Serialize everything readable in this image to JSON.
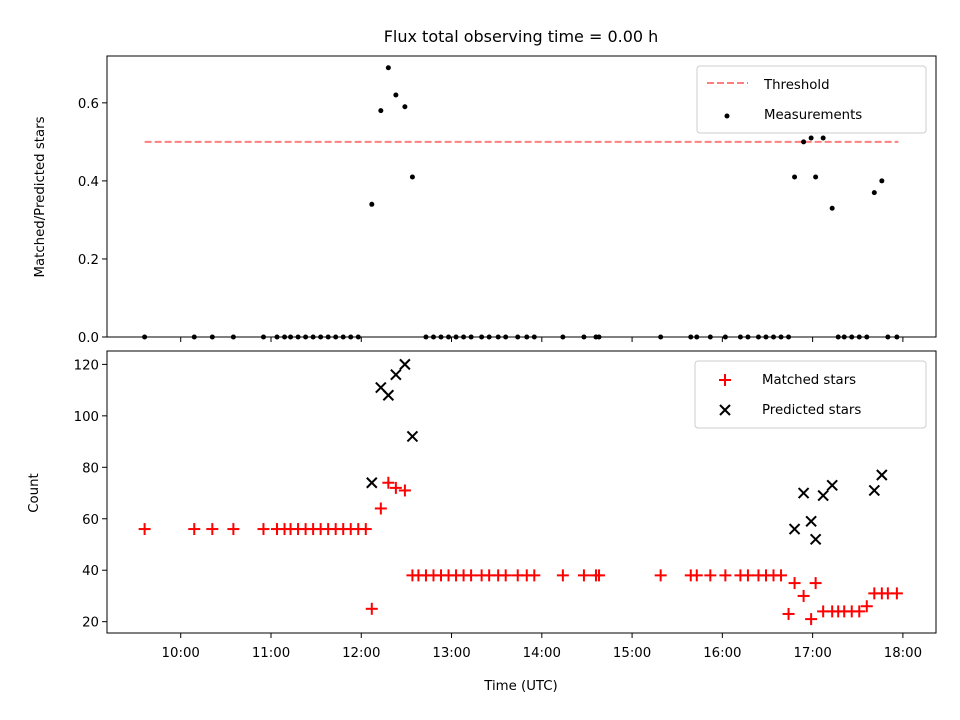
{
  "chart_data": [
    {
      "type": "scatter",
      "title": "Flux total observing time = 0.00 h",
      "xlabel": "",
      "ylabel": "Matched/Predicted stars",
      "ylim": [
        0,
        0.72
      ],
      "yticks": [
        0.0,
        0.2,
        0.4,
        0.6
      ],
      "ytick_labels": [
        "0.0",
        "0.2",
        "0.4",
        "0.6"
      ],
      "xlim": [
        "09:11",
        "18:22"
      ],
      "xticks": [
        "10:00",
        "11:00",
        "12:00",
        "13:00",
        "14:00",
        "15:00",
        "16:00",
        "17:00",
        "18:00"
      ],
      "legend": {
        "position": "top-right",
        "entries": [
          "Threshold",
          "Measurements"
        ]
      },
      "series": [
        {
          "name": "Threshold",
          "style": "dashed-line",
          "color": "#ff7f7f",
          "x": [
            "09:36",
            "17:57"
          ],
          "y": [
            0.5,
            0.5
          ]
        },
        {
          "name": "Measurements",
          "style": "dot",
          "color": "#000000",
          "x": [
            "09:36",
            "10:09",
            "10:21",
            "10:35",
            "10:55",
            "11:04",
            "11:09",
            "11:13",
            "11:18",
            "11:23",
            "11:28",
            "11:33",
            "11:38",
            "11:43",
            "11:48",
            "11:53",
            "11:58",
            "12:07",
            "12:13",
            "12:18",
            "12:23",
            "12:29",
            "12:34",
            "12:43",
            "12:48",
            "12:53",
            "12:58",
            "13:03",
            "13:08",
            "13:13",
            "13:20",
            "13:25",
            "13:31",
            "13:36",
            "13:44",
            "13:50",
            "13:55",
            "14:14",
            "14:28",
            "14:36",
            "14:38",
            "15:19",
            "15:39",
            "15:43",
            "15:52",
            "16:02",
            "16:12",
            "16:17",
            "16:24",
            "16:29",
            "16:34",
            "16:39",
            "16:44",
            "16:48",
            "16:54",
            "16:59",
            "17:02",
            "17:07",
            "17:13",
            "17:17",
            "17:21",
            "17:26",
            "17:31",
            "17:36",
            "17:41",
            "17:46",
            "17:50",
            "17:56"
          ],
          "y": [
            0,
            0,
            0,
            0,
            0,
            0,
            0,
            0,
            0,
            0,
            0,
            0,
            0,
            0,
            0,
            0,
            0,
            0.34,
            0.58,
            0.69,
            0.62,
            0.59,
            0.41,
            0,
            0,
            0,
            0,
            0,
            0,
            0,
            0,
            0,
            0,
            0,
            0,
            0,
            0,
            0,
            0,
            0,
            0,
            0,
            0,
            0,
            0,
            0,
            0,
            0,
            0,
            0,
            0,
            0,
            0,
            0.41,
            0.5,
            0.51,
            0.41,
            0.51,
            0.33,
            0,
            0,
            0,
            0,
            0,
            0.37,
            0.4,
            0,
            0
          ]
        }
      ]
    },
    {
      "type": "scatter",
      "title": "",
      "xlabel": "Time (UTC)",
      "ylabel": "Count",
      "ylim": [
        15.6,
        125.2
      ],
      "yticks": [
        20,
        40,
        60,
        80,
        100,
        120
      ],
      "ytick_labels": [
        "20",
        "40",
        "60",
        "80",
        "100",
        "120"
      ],
      "xlim": [
        "09:11",
        "18:22"
      ],
      "xticks": [
        "10:00",
        "11:00",
        "12:00",
        "13:00",
        "14:00",
        "15:00",
        "16:00",
        "17:00",
        "18:00"
      ],
      "xtick_labels": [
        "10:00",
        "11:00",
        "12:00",
        "13:00",
        "14:00",
        "15:00",
        "16:00",
        "17:00",
        "18:00"
      ],
      "legend": {
        "position": "top-right",
        "entries": [
          "Matched stars",
          "Predicted stars"
        ]
      },
      "series": [
        {
          "name": "Matched stars",
          "marker": "plus",
          "color": "#ff0000",
          "x": [
            "09:36",
            "10:09",
            "10:21",
            "10:35",
            "10:55",
            "11:04",
            "11:09",
            "11:13",
            "11:18",
            "11:23",
            "11:28",
            "11:33",
            "11:38",
            "11:43",
            "11:48",
            "11:53",
            "11:58",
            "12:03",
            "12:07",
            "12:13",
            "12:18",
            "12:23",
            "12:29",
            "12:34",
            "12:38",
            "12:43",
            "12:48",
            "12:53",
            "12:58",
            "13:03",
            "13:08",
            "13:13",
            "13:20",
            "13:25",
            "13:31",
            "13:36",
            "13:44",
            "13:50",
            "13:55",
            "14:14",
            "14:28",
            "14:36",
            "14:38",
            "15:19",
            "15:39",
            "15:43",
            "15:52",
            "16:02",
            "16:12",
            "16:17",
            "16:24",
            "16:29",
            "16:34",
            "16:39",
            "16:44",
            "16:48",
            "16:54",
            "16:59",
            "17:02",
            "17:07",
            "17:13",
            "17:17",
            "17:21",
            "17:26",
            "17:31",
            "17:36",
            "17:41",
            "17:46",
            "17:50",
            "17:56"
          ],
          "y": [
            56,
            56,
            56,
            56,
            56,
            56,
            56,
            56,
            56,
            56,
            56,
            56,
            56,
            56,
            56,
            56,
            56,
            56,
            25,
            64,
            74,
            72,
            71,
            38,
            38,
            38,
            38,
            38,
            38,
            38,
            38,
            38,
            38,
            38,
            38,
            38,
            38,
            38,
            38,
            38,
            38,
            38,
            38,
            38,
            38,
            38,
            38,
            38,
            38,
            38,
            38,
            38,
            38,
            38,
            23,
            35,
            30,
            21,
            35,
            24,
            24,
            24,
            24,
            24,
            24,
            26,
            31,
            31,
            31,
            31
          ]
        },
        {
          "name": "Predicted stars",
          "marker": "x",
          "color": "#000000",
          "x": [
            "12:07",
            "12:13",
            "12:18",
            "12:23",
            "12:29",
            "12:34",
            "16:48",
            "16:54",
            "16:59",
            "17:02",
            "17:07",
            "17:13",
            "17:41",
            "17:46"
          ],
          "y": [
            74,
            111,
            108,
            116,
            120,
            92,
            56,
            70,
            59,
            52,
            69,
            73,
            71,
            77
          ]
        }
      ]
    }
  ]
}
